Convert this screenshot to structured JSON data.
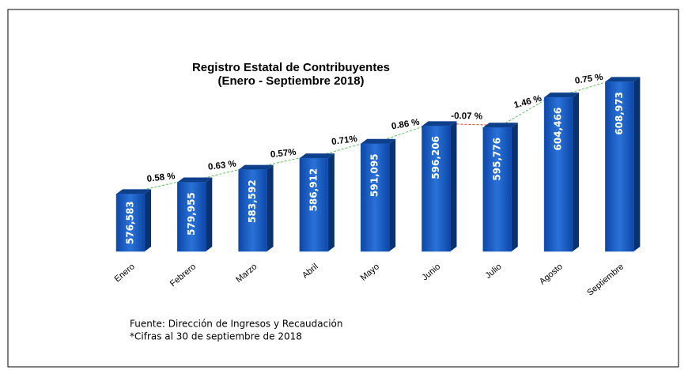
{
  "chart_data": {
    "type": "bar3d",
    "title": "Registro Estatal de Contribuyentes",
    "subtitle": "(Enero - Septiembre 2018)",
    "categories": [
      "Enero",
      "Febrero",
      "Marzo",
      "Abril",
      "Mayo",
      "Junio",
      "Julio",
      "Agosto",
      "Septiembre"
    ],
    "values": [
      576583,
      579955,
      583592,
      586912,
      591095,
      596206,
      595776,
      604466,
      608973
    ],
    "value_labels": [
      "576,583",
      "579,955",
      "583,592",
      "586,912",
      "591,095",
      "596,206",
      "595,776",
      "604,466",
      "608,973"
    ],
    "growth_labels": [
      "0.58 %",
      "0.63 %",
      "0.57%",
      "0.71%",
      "0.86 %",
      "-0.07 %",
      "1.46 %",
      "0.75 %"
    ],
    "color": "#1a5cc0",
    "connector_colors": {
      "up": "#5cc05c",
      "down": "#e03a3a"
    },
    "ylim": [
      560000,
      615000
    ],
    "notes": [
      "Fuente: Dirección de Ingresos y Recaudación",
      "*Cifras al 30 de septiembre de 2018"
    ]
  }
}
